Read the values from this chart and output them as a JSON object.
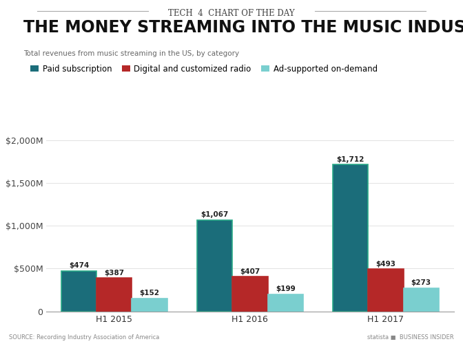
{
  "supertitle": "TECH  4  CHART OF THE DAY",
  "title": "THE MONEY STREAMING INTO THE MUSIC INDUSTRY",
  "subtitle": "Total revenues from music streaming in the US, by category",
  "categories": [
    "H1 2015",
    "H1 2016",
    "H1 2017"
  ],
  "series": [
    {
      "name": "Paid subscription",
      "values": [
        474,
        1067,
        1712
      ],
      "color": "#1b6d7a",
      "edge_color": "#2aaa88"
    },
    {
      "name": "Digital and customized radio",
      "values": [
        387,
        407,
        493
      ],
      "color": "#b52828",
      "edge_color": "#b52828"
    },
    {
      "name": "Ad-supported on-demand",
      "values": [
        152,
        199,
        273
      ],
      "color": "#7acfcf",
      "edge_color": "#7acfcf"
    }
  ],
  "ylim": [
    0,
    2100
  ],
  "yticks": [
    0,
    500,
    1000,
    1500,
    2000
  ],
  "ytick_labels": [
    "0",
    "$500M",
    "$1,000M",
    "$1,500M",
    "$2,000M"
  ],
  "bar_width": 0.26,
  "background_color": "#ffffff",
  "plot_bg_color": "#ffffff",
  "title_fontsize": 17,
  "supertitle_fontsize": 8.5,
  "subtitle_fontsize": 7.5,
  "label_fontsize": 7.5,
  "legend_fontsize": 8.5,
  "axis_label_fontsize": 9,
  "source_text": "SOURCE: Recording Industry Association of America",
  "source_right": "statista ■  BUSINESS INSIDER"
}
